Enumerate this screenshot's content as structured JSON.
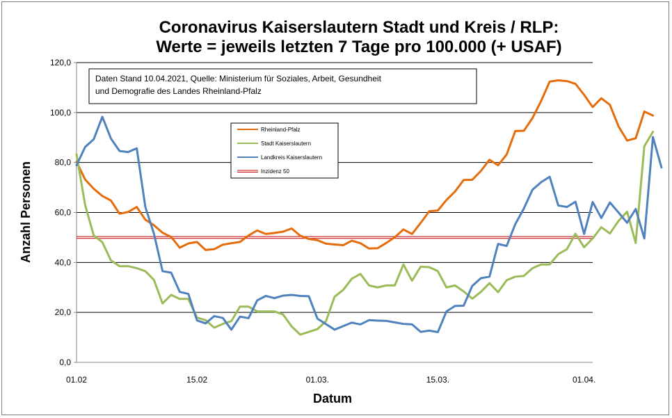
{
  "chart_data": {
    "type": "line",
    "title_line1": "Coronavirus Kaiserslautern Stadt und Kreis / RLP:",
    "title_line2": "Werte = jeweils letzten 7 Tage pro 100.000 (+ USAF)",
    "xlabel": "Datum",
    "ylabel": "Anzahl Personen",
    "note_line1": "Daten Stand 10.04.2021, Quelle: Ministerium für Soziales, Arbeit, Gesundheit",
    "note_line2": "und Demografie des Landes Rheinland-Pfalz",
    "ylim": [
      0,
      120
    ],
    "y_ticks": [
      {
        "value": 0,
        "label": "0,0"
      },
      {
        "value": 20,
        "label": "20,0"
      },
      {
        "value": 40,
        "label": "40,0"
      },
      {
        "value": 60,
        "label": "60,0"
      },
      {
        "value": 80,
        "label": "80,0"
      },
      {
        "value": 100,
        "label": "100,0"
      },
      {
        "value": 120,
        "label": "120,0"
      }
    ],
    "x_range": [
      "2021-02-01",
      "2021-04-02"
    ],
    "x_ticks": [
      {
        "date": "2021-02-01",
        "label": "01.02"
      },
      {
        "date": "2021-02-15",
        "label": "15.02"
      },
      {
        "date": "2021-03-01",
        "label": "01.03."
      },
      {
        "date": "2021-03-15",
        "label": "15.03."
      },
      {
        "date": "2021-04-01",
        "label": "01.04."
      }
    ],
    "gridlines": "horizontal",
    "legend_position": "upper-center",
    "series": [
      {
        "name": "Rheinland-Pfalz",
        "color": "#E46C0A",
        "start_date": "2021-02-01",
        "values": [
          80.3,
          73.2,
          69.5,
          66.6,
          64.8,
          59.5,
          60.2,
          62.2,
          57.1,
          54.9,
          51.9,
          50.2,
          45.9,
          47.6,
          48.2,
          45.0,
          45.3,
          47.1,
          47.7,
          48.2,
          50.8,
          52.8,
          51.4,
          51.8,
          52.3,
          53.6,
          50.7,
          49.4,
          48.9,
          47.5,
          47.2,
          46.9,
          48.7,
          47.7,
          45.6,
          45.7,
          47.8,
          50.1,
          53.2,
          51.4,
          55.8,
          60.5,
          60.8,
          65.0,
          68.4,
          73.0,
          73.1,
          76.6,
          81.1,
          78.9,
          83.2,
          92.6,
          92.7,
          97.8,
          104.6,
          112.4,
          112.9,
          112.6,
          111.5,
          107.1,
          102.2,
          105.7,
          103.1,
          94.5,
          88.8,
          89.7,
          100.4,
          98.8
        ]
      },
      {
        "name": "Stadt Kaiserslautern",
        "color": "#9BBB59",
        "start_date": "2021-02-01",
        "values": [
          83.3,
          63.0,
          50.8,
          48.1,
          40.8,
          38.5,
          38.5,
          37.7,
          36.5,
          33.0,
          23.6,
          27.0,
          25.4,
          25.4,
          17.9,
          16.9,
          13.9,
          15.4,
          16.5,
          22.3,
          22.3,
          20.4,
          20.4,
          20.4,
          19.2,
          14.4,
          11.1,
          12.2,
          13.3,
          16.5,
          26.3,
          29.0,
          33.5,
          35.4,
          30.8,
          30.0,
          30.8,
          30.8,
          39.2,
          32.7,
          38.3,
          38.1,
          36.5,
          30.0,
          30.8,
          28.4,
          25.5,
          28.2,
          31.7,
          28.1,
          32.9,
          34.3,
          34.6,
          37.7,
          39.2,
          39.2,
          43.3,
          45.3,
          51.5,
          46.1,
          49.6,
          54.1,
          51.6,
          56.6,
          60.3,
          47.8,
          86.5,
          92.3
        ]
      },
      {
        "name": "Landkreis Kaiserslautern",
        "color": "#4F81BD",
        "start_date": "2021-02-01",
        "values": [
          78.9,
          86.2,
          89.3,
          98.3,
          89.6,
          84.6,
          84.2,
          85.7,
          62.2,
          51.5,
          36.5,
          35.9,
          28.2,
          27.4,
          16.8,
          15.6,
          18.5,
          17.8,
          13.1,
          18.3,
          17.7,
          24.8,
          26.6,
          25.7,
          26.7,
          27.0,
          26.6,
          26.5,
          17.5,
          15.3,
          13.1,
          14.5,
          15.9,
          15.2,
          16.9,
          16.7,
          16.6,
          16.0,
          15.4,
          15.2,
          12.2,
          12.7,
          12.1,
          20.4,
          22.6,
          22.7,
          30.6,
          33.7,
          34.3,
          47.4,
          46.6,
          55.3,
          61.6,
          69.1,
          72.1,
          74.3,
          62.8,
          62.2,
          64.3,
          51.4,
          64.2,
          57.8,
          64.0,
          60.0,
          55.9,
          61.4,
          49.6,
          90.2,
          78.0
        ]
      },
      {
        "name": "Inzidenz 50",
        "color": "#C00000",
        "start_date": "2021-02-01",
        "constant_value": 50,
        "values": [
          50,
          50
        ]
      }
    ]
  }
}
